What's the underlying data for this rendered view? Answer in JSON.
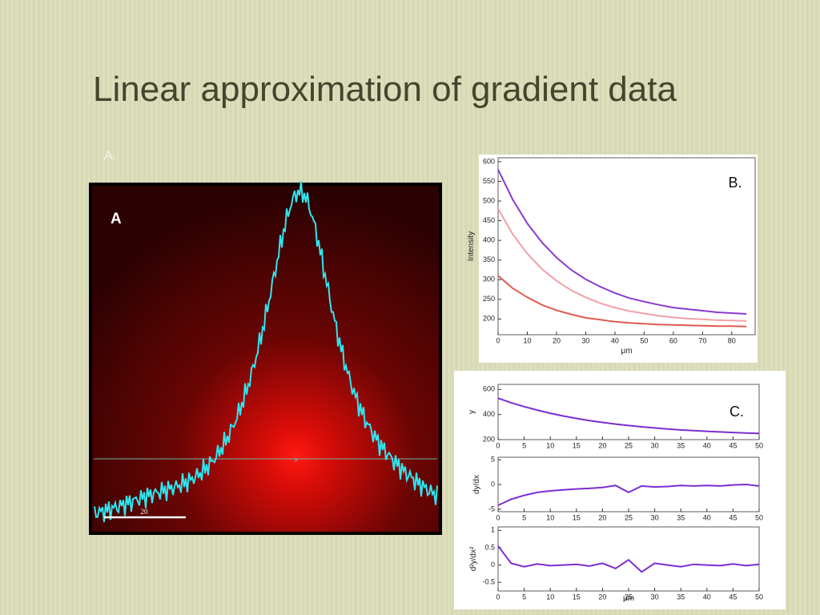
{
  "title": "Linear approximation of gradient data",
  "panel_a": {
    "outer_label": "A.",
    "label": "A",
    "scale_label": "20"
  },
  "chart_data": [
    {
      "type": "line",
      "y_label": "Intensity",
      "x_label": "μm",
      "annotation": "B.",
      "x": [
        0,
        5,
        10,
        15,
        20,
        25,
        30,
        35,
        40,
        45,
        50,
        55,
        60,
        65,
        70,
        75,
        80,
        85
      ],
      "xlim": [
        0,
        88
      ],
      "xticks": [
        0,
        10,
        20,
        30,
        40,
        50,
        60,
        70,
        80
      ],
      "ylim": [
        160,
        610
      ],
      "yticks": [
        200,
        250,
        300,
        350,
        400,
        450,
        500,
        550,
        600
      ],
      "series": [
        {
          "color": "#f2a0a8",
          "values": [
            480,
            416,
            366,
            327,
            297,
            273,
            255,
            240,
            229,
            220,
            214,
            208,
            204,
            201,
            199,
            197,
            196,
            195
          ]
        },
        {
          "color": "#e05a50",
          "values": [
            310,
            278,
            255,
            236,
            222,
            212,
            203,
            198,
            193,
            190,
            188,
            186,
            185,
            184,
            183,
            182,
            182,
            181
          ]
        },
        {
          "color": "#8a3ad0",
          "values": [
            580,
            504,
            443,
            395,
            356,
            325,
            301,
            282,
            266,
            253,
            244,
            236,
            229,
            225,
            221,
            217,
            215,
            213
          ]
        }
      ]
    },
    {
      "type": "line",
      "y_label": "y",
      "annotation": "C.",
      "x": [
        0,
        2.5,
        5,
        7.5,
        10,
        12.5,
        15,
        17.5,
        20,
        22.5,
        25,
        27.5,
        30,
        32.5,
        35,
        37.5,
        40,
        42.5,
        45,
        47.5,
        50
      ],
      "xlim": [
        0,
        50
      ],
      "xticks": [
        0,
        5,
        10,
        15,
        20,
        25,
        30,
        35,
        40,
        45,
        50
      ],
      "ylim": [
        200,
        640
      ],
      "yticks": [
        200,
        400,
        600
      ],
      "series": [
        {
          "color": "#7a2ed0",
          "values": [
            530,
            494,
            463,
            435,
            410,
            388,
            369,
            352,
            337,
            324,
            312,
            302,
            293,
            285,
            277,
            272,
            266,
            261,
            257,
            253,
            250
          ]
        }
      ]
    },
    {
      "type": "line",
      "y_label": "dy/dx",
      "x": [
        0,
        2.5,
        5,
        7.5,
        10,
        12.5,
        15,
        17.5,
        20,
        22.5,
        25,
        27.5,
        30,
        32.5,
        35,
        37.5,
        40,
        42.5,
        45,
        47.5,
        50
      ],
      "xlim": [
        0,
        50
      ],
      "xticks": [
        0,
        5,
        10,
        15,
        20,
        25,
        30,
        35,
        40,
        45,
        50
      ],
      "ylim": [
        -5.5,
        5.5
      ],
      "yticks": [
        -5,
        0,
        5
      ],
      "series": [
        {
          "color": "#7a2ed0",
          "values": [
            -4.2,
            -3,
            -2.2,
            -1.6,
            -1.3,
            -1.1,
            -0.9,
            -0.8,
            -0.6,
            -0.2,
            -1.6,
            -0.3,
            -0.5,
            -0.4,
            -0.2,
            -0.3,
            -0.2,
            -0.3,
            -0.1,
            0,
            -0.3
          ]
        }
      ]
    },
    {
      "type": "line",
      "y_label": "d²y/dx²",
      "x_label": "μm",
      "x": [
        0,
        2.5,
        5,
        7.5,
        10,
        12.5,
        15,
        17.5,
        20,
        22.5,
        25,
        27.5,
        30,
        32.5,
        35,
        37.5,
        40,
        42.5,
        45,
        47.5,
        50
      ],
      "xlim": [
        0,
        50
      ],
      "xticks": [
        0,
        5,
        10,
        15,
        20,
        25,
        30,
        35,
        40,
        45,
        50
      ],
      "ylim": [
        -0.75,
        1.1
      ],
      "yticks": [
        -0.5,
        0,
        0.5,
        1
      ],
      "series": [
        {
          "color": "#7a2ed0",
          "values": [
            0.55,
            0.05,
            -0.05,
            0.03,
            -0.02,
            0,
            0.02,
            -0.03,
            0.05,
            -0.1,
            0.15,
            -0.2,
            0.05,
            0,
            -0.05,
            0.02,
            0,
            -0.02,
            0.03,
            -0.02,
            0.02
          ]
        }
      ]
    }
  ]
}
